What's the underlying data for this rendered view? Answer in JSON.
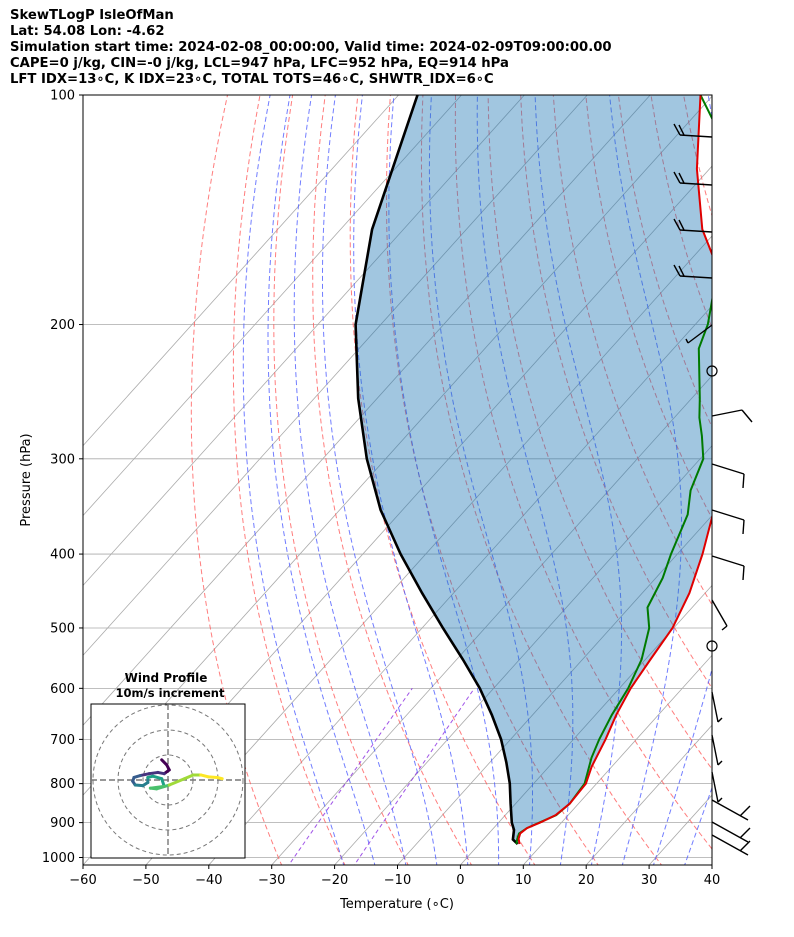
{
  "header": {
    "line1": "SkewTLogP IsleOfMan",
    "line2": "Lat: 54.08   Lon: -4.62",
    "line3": "Simulation start time: 2024-02-08_00:00:00, Valid time: 2024-02-09T09:00:00.00",
    "line4": "CAPE=0 j/kg, CIN=-0 j/kg, LCL=947 hPa, LFC=952 hPa, EQ=914 hPa",
    "line5": "LFT IDX=13∘C, K IDX=23∘C, TOTAL TOTS=46∘C, SHWTR_IDX=6∘C"
  },
  "chart_data": {
    "type": "line",
    "subtype": "skew-T log-P diagram",
    "xlabel": "Temperature (∘C)",
    "ylabel": "Pressure (hPa)",
    "xlim": [
      -60,
      40
    ],
    "ylim": [
      1050,
      100
    ],
    "yscale": "log",
    "xticks": [
      -60,
      -50,
      -40,
      -30,
      -20,
      -10,
      0,
      10,
      20,
      30,
      40
    ],
    "yticks": [
      100,
      200,
      300,
      400,
      500,
      600,
      700,
      800,
      900,
      1000
    ],
    "grid": true,
    "colors": {
      "temperature": "#e00000",
      "dewpoint": "#007a00",
      "parcel": "#000000",
      "cape_cin_fill": "#1f77b4",
      "dry_adiabat": "#ff5c5c",
      "moist_adiabat": "#4d5cff",
      "mixing_ratio": "#8a2be2",
      "isotherm": "#aaaaaa"
    },
    "series": [
      {
        "role": "temperature",
        "points": [
          [
            6.4,
            960
          ],
          [
            5.5,
            945
          ],
          [
            5,
            930
          ],
          [
            5.3,
            915
          ],
          [
            6.6,
            900
          ],
          [
            8,
            880
          ],
          [
            8.6,
            850
          ],
          [
            8.3,
            800
          ],
          [
            6.8,
            760
          ],
          [
            5.1,
            700
          ],
          [
            3.3,
            650
          ],
          [
            1.8,
            600
          ],
          [
            0.8,
            550
          ],
          [
            -0.2,
            500
          ],
          [
            -2.5,
            450
          ],
          [
            -6,
            400
          ],
          [
            -10.5,
            350
          ],
          [
            -16,
            300
          ],
          [
            -24,
            250
          ],
          [
            -32,
            200
          ],
          [
            -42,
            175
          ],
          [
            -52.5,
            150
          ],
          [
            -62,
            125
          ],
          [
            -72,
            100
          ]
        ]
      },
      {
        "role": "dewpoint",
        "points": [
          [
            5.9,
            960
          ],
          [
            5.3,
            945
          ],
          [
            4.8,
            930
          ],
          [
            5.3,
            915
          ],
          [
            6.5,
            900
          ],
          [
            8.1,
            880
          ],
          [
            8.6,
            850
          ],
          [
            8.1,
            800
          ],
          [
            5.5,
            740
          ],
          [
            4.1,
            700
          ],
          [
            2.6,
            650
          ],
          [
            1.4,
            600
          ],
          [
            -0.6,
            550
          ],
          [
            -3.9,
            500
          ],
          [
            -7.1,
            470
          ],
          [
            -8.9,
            430
          ],
          [
            -11,
            400
          ],
          [
            -14,
            355
          ],
          [
            -17,
            330
          ],
          [
            -19.5,
            300
          ],
          [
            -23,
            280
          ],
          [
            -26,
            265
          ],
          [
            -28.7,
            250
          ],
          [
            -36,
            215
          ],
          [
            -38,
            200
          ],
          [
            -42,
            180
          ],
          [
            -46,
            165
          ],
          [
            -55,
            135
          ],
          [
            -65,
            110
          ],
          [
            -72,
            100
          ]
        ]
      },
      {
        "role": "parcel",
        "points": [
          [
            6.1,
            960
          ],
          [
            4.7,
            947
          ],
          [
            3.5,
            920
          ],
          [
            2.1,
            900
          ],
          [
            -0.8,
            850
          ],
          [
            -3.8,
            800
          ],
          [
            -7.4,
            750
          ],
          [
            -11.5,
            700
          ],
          [
            -16.5,
            650
          ],
          [
            -22.2,
            600
          ],
          [
            -29,
            550
          ],
          [
            -36.7,
            500
          ],
          [
            -45,
            450
          ],
          [
            -54,
            400
          ],
          [
            -63.5,
            350
          ],
          [
            -73,
            300
          ],
          [
            -83,
            250
          ],
          [
            -94,
            200
          ],
          [
            -105,
            150
          ],
          [
            -117,
            100
          ]
        ]
      }
    ],
    "wind_barbs_visible": true
  },
  "hodograph": {
    "title_line1": "Wind Profile",
    "title_line2": "10m/s increment",
    "points": [
      [
        -0.5,
        1.6
      ],
      [
        -0.1,
        1.2
      ],
      [
        0.1,
        0.8
      ],
      [
        -0.3,
        0.5
      ],
      [
        -0.8,
        0.6
      ],
      [
        -1.5,
        0.5
      ],
      [
        -2.2,
        0.35
      ],
      [
        -2.7,
        0.2
      ],
      [
        -2.8,
        -0.1
      ],
      [
        -2.6,
        -0.4
      ],
      [
        -2.0,
        -0.45
      ],
      [
        -1.6,
        -0.2
      ],
      [
        -1.6,
        0.2
      ],
      [
        -1.2,
        0.3
      ],
      [
        -0.5,
        0.1
      ],
      [
        -0.3,
        -0.5
      ],
      [
        -1.4,
        -0.65
      ],
      [
        -0.9,
        -0.7
      ],
      [
        0.1,
        -0.4
      ],
      [
        1.3,
        0.1
      ],
      [
        2.0,
        0.4
      ],
      [
        2.6,
        0.4
      ],
      [
        3.2,
        0.25
      ],
      [
        3.9,
        0.2
      ],
      [
        4.3,
        0.1
      ]
    ]
  }
}
